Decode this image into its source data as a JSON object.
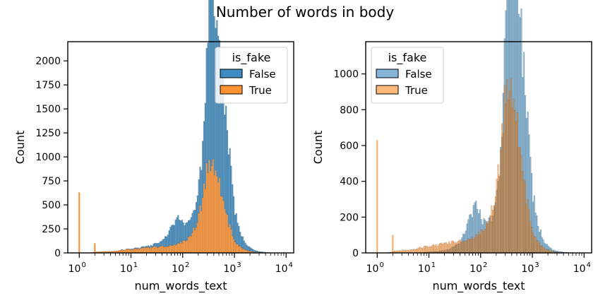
{
  "suptitle": "Number of words in body",
  "chart_data": [
    {
      "type": "histogram",
      "stacking": "stacked",
      "xscale": "log",
      "xlabel": "num_words_text",
      "ylabel": "Count",
      "xlim": [
        0.6,
        14000
      ],
      "ylim": [
        0,
        2200
      ],
      "xticks": [
        1,
        10,
        100,
        1000,
        10000
      ],
      "xtick_labels": [
        {
          "base": "10",
          "exp": "0"
        },
        {
          "base": "10",
          "exp": "1"
        },
        {
          "base": "10",
          "exp": "2"
        },
        {
          "base": "10",
          "exp": "3"
        },
        {
          "base": "10",
          "exp": "4"
        }
      ],
      "yticks": [
        0,
        250,
        500,
        750,
        1000,
        1250,
        1500,
        1750,
        2000
      ],
      "ytick_labels": [
        "0",
        "250",
        "500",
        "750",
        "1000",
        "1250",
        "1500",
        "1750",
        "2000"
      ],
      "legend": {
        "title": "is_fake",
        "position": "upper right"
      },
      "series": [
        {
          "name": "False",
          "color": "#1f77b4",
          "alpha": 0.75,
          "curve": [
            [
              1,
              0
            ],
            [
              5,
              0
            ],
            [
              8,
              3
            ],
            [
              15,
              10
            ],
            [
              25,
              20
            ],
            [
              40,
              60
            ],
            [
              55,
              160
            ],
            [
              70,
              230
            ],
            [
              80,
              260
            ],
            [
              90,
              240
            ],
            [
              110,
              180
            ],
            [
              130,
              160
            ],
            [
              160,
              190
            ],
            [
              200,
              300
            ],
            [
              240,
              520
            ],
            [
              280,
              950
            ],
            [
              310,
              1350
            ],
            [
              330,
              1700
            ],
            [
              350,
              2000
            ],
            [
              370,
              2050
            ],
            [
              400,
              1750
            ],
            [
              430,
              1550
            ],
            [
              480,
              1450
            ],
            [
              550,
              1400
            ],
            [
              650,
              1150
            ],
            [
              800,
              750
            ],
            [
              1000,
              350
            ],
            [
              1300,
              150
            ],
            [
              1800,
              50
            ],
            [
              2500,
              15
            ],
            [
              4000,
              4
            ],
            [
              8000,
              0
            ]
          ]
        },
        {
          "name": "True",
          "color": "#ff7f0e",
          "alpha": 0.75,
          "curve": [
            [
              1,
              0
            ],
            [
              1.5,
              0
            ],
            [
              2.2,
              10
            ],
            [
              3,
              15
            ],
            [
              4,
              15
            ],
            [
              5,
              20
            ],
            [
              7,
              30
            ],
            [
              10,
              40
            ],
            [
              15,
              45
            ],
            [
              20,
              55
            ],
            [
              30,
              60
            ],
            [
              40,
              65
            ],
            [
              55,
              75
            ],
            [
              70,
              85
            ],
            [
              90,
              100
            ],
            [
              110,
              120
            ],
            [
              140,
              170
            ],
            [
              170,
              250
            ],
            [
              200,
              380
            ],
            [
              230,
              500
            ],
            [
              260,
              640
            ],
            [
              290,
              820
            ],
            [
              310,
              920
            ],
            [
              330,
              990
            ],
            [
              360,
              960
            ],
            [
              400,
              860
            ],
            [
              450,
              810
            ],
            [
              500,
              760
            ],
            [
              560,
              660
            ],
            [
              650,
              500
            ],
            [
              780,
              300
            ],
            [
              950,
              160
            ],
            [
              1200,
              70
            ],
            [
              1600,
              30
            ],
            [
              2200,
              12
            ],
            [
              3000,
              5
            ],
            [
              5000,
              0
            ]
          ],
          "spikes": [
            [
              1,
              630
            ],
            [
              2,
              100
            ]
          ]
        }
      ]
    },
    {
      "type": "histogram",
      "stacking": "layer",
      "xscale": "log",
      "xlabel": "num_words_text",
      "ylabel": "Count",
      "xlim": [
        0.6,
        14000
      ],
      "ylim": [
        0,
        1180
      ],
      "xticks": [
        1,
        10,
        100,
        1000,
        10000
      ],
      "xtick_labels": [
        {
          "base": "10",
          "exp": "0"
        },
        {
          "base": "10",
          "exp": "1"
        },
        {
          "base": "10",
          "exp": "2"
        },
        {
          "base": "10",
          "exp": "3"
        },
        {
          "base": "10",
          "exp": "4"
        }
      ],
      "yticks": [
        0,
        200,
        400,
        600,
        800,
        1000
      ],
      "ytick_labels": [
        "0",
        "200",
        "400",
        "600",
        "800",
        "1000"
      ],
      "legend": {
        "title": "is_fake",
        "position": "upper left"
      },
      "series": [
        {
          "name": "False",
          "color": "#1f77b4",
          "alpha": 0.5,
          "curve": [
            [
              1,
              0
            ],
            [
              5,
              0
            ],
            [
              8,
              3
            ],
            [
              15,
              10
            ],
            [
              25,
              20
            ],
            [
              40,
              60
            ],
            [
              55,
              160
            ],
            [
              70,
              230
            ],
            [
              80,
              260
            ],
            [
              90,
              240
            ],
            [
              110,
              180
            ],
            [
              130,
              160
            ],
            [
              160,
              190
            ],
            [
              200,
              300
            ],
            [
              240,
              520
            ],
            [
              280,
              950
            ],
            [
              310,
              1350
            ],
            [
              330,
              1700
            ],
            [
              350,
              2000
            ],
            [
              370,
              2050
            ],
            [
              400,
              1750
            ],
            [
              430,
              1550
            ],
            [
              480,
              1450
            ],
            [
              550,
              1400
            ],
            [
              650,
              1150
            ],
            [
              800,
              750
            ],
            [
              1000,
              350
            ],
            [
              1300,
              150
            ],
            [
              1800,
              50
            ],
            [
              2500,
              15
            ],
            [
              4000,
              4
            ],
            [
              8000,
              0
            ]
          ]
        },
        {
          "name": "True",
          "color": "#ff7f0e",
          "alpha": 0.5,
          "curve": [
            [
              1,
              0
            ],
            [
              1.5,
              0
            ],
            [
              2.2,
              10
            ],
            [
              3,
              15
            ],
            [
              4,
              15
            ],
            [
              5,
              20
            ],
            [
              7,
              30
            ],
            [
              10,
              40
            ],
            [
              15,
              45
            ],
            [
              20,
              55
            ],
            [
              30,
              60
            ],
            [
              40,
              65
            ],
            [
              55,
              75
            ],
            [
              70,
              85
            ],
            [
              90,
              100
            ],
            [
              110,
              120
            ],
            [
              140,
              170
            ],
            [
              170,
              250
            ],
            [
              200,
              380
            ],
            [
              230,
              500
            ],
            [
              260,
              640
            ],
            [
              290,
              820
            ],
            [
              310,
              920
            ],
            [
              330,
              990
            ],
            [
              360,
              960
            ],
            [
              400,
              860
            ],
            [
              450,
              810
            ],
            [
              500,
              760
            ],
            [
              560,
              660
            ],
            [
              650,
              500
            ],
            [
              780,
              300
            ],
            [
              950,
              160
            ],
            [
              1200,
              70
            ],
            [
              1600,
              30
            ],
            [
              2200,
              12
            ],
            [
              3000,
              5
            ],
            [
              5000,
              0
            ]
          ],
          "spikes": [
            [
              1,
              630
            ],
            [
              2,
              100
            ]
          ]
        }
      ]
    }
  ]
}
